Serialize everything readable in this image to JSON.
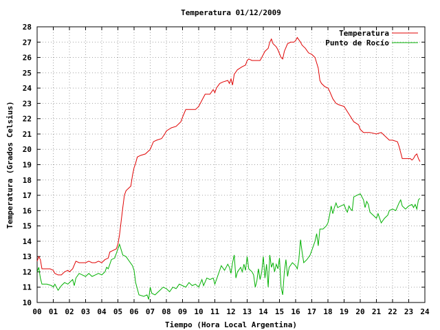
{
  "chart_data": {
    "type": "line",
    "title": "Temperatura 01/12/2009",
    "xlabel": "Tiempo (Hora Local Argentina)",
    "ylabel": "Temperatura (Grados Celsius)",
    "xlim": [
      0,
      24
    ],
    "ylim": [
      10,
      28
    ],
    "x_ticks": [
      "00",
      "01",
      "02",
      "03",
      "04",
      "05",
      "06",
      "07",
      "08",
      "09",
      "10",
      "11",
      "12",
      "13",
      "14",
      "15",
      "16",
      "17",
      "18",
      "19",
      "20",
      "21",
      "22",
      "23",
      "24"
    ],
    "y_ticks": [
      "10",
      "11",
      "12",
      "13",
      "14",
      "15",
      "16",
      "17",
      "18",
      "19",
      "20",
      "21",
      "22",
      "23",
      "24",
      "25",
      "26",
      "27",
      "28"
    ],
    "grid": true,
    "legend_position": "top-right",
    "series": [
      {
        "name": "Temperatura",
        "color": "#e00000",
        "points": [
          [
            0.0,
            12.7
          ],
          [
            0.1,
            13.0
          ],
          [
            0.2,
            12.8
          ],
          [
            0.3,
            12.2
          ],
          [
            0.5,
            12.2
          ],
          [
            0.8,
            12.2
          ],
          [
            1.0,
            12.1
          ],
          [
            1.1,
            11.9
          ],
          [
            1.3,
            11.8
          ],
          [
            1.5,
            11.8
          ],
          [
            1.7,
            12.0
          ],
          [
            1.9,
            12.1
          ],
          [
            2.0,
            12.0
          ],
          [
            2.2,
            12.2
          ],
          [
            2.4,
            12.7
          ],
          [
            2.6,
            12.6
          ],
          [
            2.8,
            12.6
          ],
          [
            3.0,
            12.6
          ],
          [
            3.2,
            12.7
          ],
          [
            3.4,
            12.6
          ],
          [
            3.6,
            12.6
          ],
          [
            3.8,
            12.7
          ],
          [
            4.0,
            12.6
          ],
          [
            4.2,
            12.8
          ],
          [
            4.4,
            12.9
          ],
          [
            4.5,
            13.3
          ],
          [
            4.7,
            13.4
          ],
          [
            4.9,
            13.5
          ],
          [
            5.0,
            13.8
          ],
          [
            5.1,
            14.4
          ],
          [
            5.2,
            15.3
          ],
          [
            5.3,
            16.2
          ],
          [
            5.4,
            17.0
          ],
          [
            5.5,
            17.3
          ],
          [
            5.7,
            17.5
          ],
          [
            5.8,
            17.6
          ],
          [
            5.9,
            18.3
          ],
          [
            6.0,
            18.8
          ],
          [
            6.1,
            19.1
          ],
          [
            6.2,
            19.5
          ],
          [
            6.4,
            19.6
          ],
          [
            6.7,
            19.7
          ],
          [
            6.9,
            19.9
          ],
          [
            7.0,
            20.0
          ],
          [
            7.2,
            20.5
          ],
          [
            7.4,
            20.6
          ],
          [
            7.7,
            20.7
          ],
          [
            7.9,
            21.0
          ],
          [
            8.0,
            21.2
          ],
          [
            8.3,
            21.4
          ],
          [
            8.6,
            21.5
          ],
          [
            8.9,
            21.8
          ],
          [
            9.0,
            22.1
          ],
          [
            9.2,
            22.6
          ],
          [
            9.5,
            22.6
          ],
          [
            9.8,
            22.6
          ],
          [
            10.0,
            22.8
          ],
          [
            10.2,
            23.2
          ],
          [
            10.4,
            23.6
          ],
          [
            10.7,
            23.6
          ],
          [
            10.9,
            23.9
          ],
          [
            11.0,
            23.7
          ],
          [
            11.1,
            24.0
          ],
          [
            11.3,
            24.3
          ],
          [
            11.5,
            24.4
          ],
          [
            11.8,
            24.5
          ],
          [
            11.9,
            24.3
          ],
          [
            12.0,
            24.6
          ],
          [
            12.1,
            24.2
          ],
          [
            12.2,
            24.9
          ],
          [
            12.4,
            25.2
          ],
          [
            12.7,
            25.4
          ],
          [
            12.9,
            25.5
          ],
          [
            13.0,
            25.8
          ],
          [
            13.1,
            25.9
          ],
          [
            13.3,
            25.8
          ],
          [
            13.6,
            25.8
          ],
          [
            13.8,
            25.8
          ],
          [
            13.9,
            26.0
          ],
          [
            14.1,
            26.4
          ],
          [
            14.3,
            26.6
          ],
          [
            14.4,
            27.0
          ],
          [
            14.5,
            27.2
          ],
          [
            14.6,
            26.9
          ],
          [
            14.8,
            26.7
          ],
          [
            14.9,
            26.5
          ],
          [
            15.1,
            26.0
          ],
          [
            15.2,
            25.9
          ],
          [
            15.3,
            26.4
          ],
          [
            15.5,
            26.9
          ],
          [
            15.7,
            27.0
          ],
          [
            15.9,
            27.0
          ],
          [
            16.0,
            27.1
          ],
          [
            16.1,
            27.3
          ],
          [
            16.3,
            27.0
          ],
          [
            16.4,
            26.8
          ],
          [
            16.6,
            26.6
          ],
          [
            16.8,
            26.3
          ],
          [
            17.0,
            26.2
          ],
          [
            17.2,
            26.0
          ],
          [
            17.4,
            25.3
          ],
          [
            17.5,
            24.5
          ],
          [
            17.6,
            24.3
          ],
          [
            17.8,
            24.1
          ],
          [
            18.0,
            24.0
          ],
          [
            18.1,
            23.8
          ],
          [
            18.3,
            23.3
          ],
          [
            18.5,
            23.0
          ],
          [
            18.7,
            22.9
          ],
          [
            19.0,
            22.8
          ],
          [
            19.3,
            22.3
          ],
          [
            19.6,
            21.8
          ],
          [
            19.9,
            21.6
          ],
          [
            20.0,
            21.3
          ],
          [
            20.2,
            21.1
          ],
          [
            20.6,
            21.1
          ],
          [
            21.0,
            21.0
          ],
          [
            21.3,
            21.1
          ],
          [
            21.5,
            20.9
          ],
          [
            21.8,
            20.6
          ],
          [
            22.0,
            20.6
          ],
          [
            22.3,
            20.5
          ],
          [
            22.4,
            20.2
          ],
          [
            22.6,
            19.4
          ],
          [
            22.9,
            19.4
          ],
          [
            23.1,
            19.4
          ],
          [
            23.2,
            19.3
          ],
          [
            23.3,
            19.4
          ],
          [
            23.4,
            19.6
          ],
          [
            23.5,
            19.7
          ],
          [
            23.6,
            19.4
          ],
          [
            23.7,
            19.2
          ]
        ]
      },
      {
        "name": "Punto de Rocío",
        "color": "#00b000",
        "points": [
          [
            0.0,
            12.0
          ],
          [
            0.1,
            12.3
          ],
          [
            0.2,
            11.6
          ],
          [
            0.3,
            11.2
          ],
          [
            0.6,
            11.2
          ],
          [
            0.9,
            11.1
          ],
          [
            1.0,
            11.0
          ],
          [
            1.1,
            11.2
          ],
          [
            1.3,
            10.8
          ],
          [
            1.5,
            11.1
          ],
          [
            1.7,
            11.3
          ],
          [
            1.9,
            11.2
          ],
          [
            2.0,
            11.3
          ],
          [
            2.2,
            11.5
          ],
          [
            2.3,
            11.1
          ],
          [
            2.4,
            11.6
          ],
          [
            2.6,
            11.9
          ],
          [
            2.8,
            11.8
          ],
          [
            3.0,
            11.7
          ],
          [
            3.2,
            11.9
          ],
          [
            3.4,
            11.7
          ],
          [
            3.6,
            11.8
          ],
          [
            3.8,
            11.9
          ],
          [
            4.0,
            11.8
          ],
          [
            4.2,
            12.0
          ],
          [
            4.3,
            12.3
          ],
          [
            4.4,
            12.2
          ],
          [
            4.6,
            12.8
          ],
          [
            4.8,
            12.9
          ],
          [
            5.0,
            13.5
          ],
          [
            5.1,
            13.8
          ],
          [
            5.3,
            13.1
          ],
          [
            5.5,
            13.0
          ],
          [
            5.7,
            12.7
          ],
          [
            5.9,
            12.4
          ],
          [
            6.0,
            12.1
          ],
          [
            6.1,
            11.3
          ],
          [
            6.2,
            10.9
          ],
          [
            6.3,
            10.5
          ],
          [
            6.6,
            10.4
          ],
          [
            6.8,
            10.5
          ],
          [
            6.9,
            10.2
          ],
          [
            7.0,
            11.0
          ],
          [
            7.1,
            10.6
          ],
          [
            7.3,
            10.5
          ],
          [
            7.6,
            10.8
          ],
          [
            7.8,
            11.0
          ],
          [
            8.0,
            10.9
          ],
          [
            8.2,
            10.7
          ],
          [
            8.4,
            11.0
          ],
          [
            8.6,
            10.9
          ],
          [
            8.8,
            11.2
          ],
          [
            9.0,
            11.1
          ],
          [
            9.2,
            11.0
          ],
          [
            9.4,
            11.3
          ],
          [
            9.6,
            11.1
          ],
          [
            9.8,
            11.2
          ],
          [
            10.0,
            11.0
          ],
          [
            10.2,
            11.5
          ],
          [
            10.3,
            11.1
          ],
          [
            10.5,
            11.6
          ],
          [
            10.7,
            11.5
          ],
          [
            10.9,
            11.6
          ],
          [
            11.0,
            11.2
          ],
          [
            11.2,
            11.8
          ],
          [
            11.4,
            12.4
          ],
          [
            11.6,
            12.1
          ],
          [
            11.8,
            12.5
          ],
          [
            11.9,
            12.3
          ],
          [
            12.0,
            11.9
          ],
          [
            12.1,
            12.6
          ],
          [
            12.2,
            13.1
          ],
          [
            12.3,
            11.6
          ],
          [
            12.4,
            12.0
          ],
          [
            12.6,
            12.3
          ],
          [
            12.7,
            12.0
          ],
          [
            12.8,
            12.5
          ],
          [
            12.9,
            12.1
          ],
          [
            13.0,
            13.0
          ],
          [
            13.1,
            12.2
          ],
          [
            13.3,
            12.0
          ],
          [
            13.4,
            11.8
          ],
          [
            13.5,
            11.0
          ],
          [
            13.6,
            11.4
          ],
          [
            13.7,
            12.2
          ],
          [
            13.8,
            11.5
          ],
          [
            13.9,
            12.0
          ],
          [
            14.0,
            13.0
          ],
          [
            14.1,
            11.6
          ],
          [
            14.2,
            12.5
          ],
          [
            14.3,
            11.0
          ],
          [
            14.4,
            13.1
          ],
          [
            14.5,
            12.3
          ],
          [
            14.6,
            12.6
          ],
          [
            14.7,
            12.0
          ],
          [
            14.8,
            12.5
          ],
          [
            14.9,
            12.2
          ],
          [
            15.0,
            12.9
          ],
          [
            15.1,
            11.0
          ],
          [
            15.2,
            10.5
          ],
          [
            15.3,
            12.0
          ],
          [
            15.4,
            12.8
          ],
          [
            15.5,
            11.7
          ],
          [
            15.6,
            12.3
          ],
          [
            15.8,
            12.6
          ],
          [
            16.0,
            12.4
          ],
          [
            16.1,
            12.2
          ],
          [
            16.2,
            12.8
          ],
          [
            16.3,
            14.1
          ],
          [
            16.4,
            13.3
          ],
          [
            16.5,
            12.6
          ],
          [
            16.7,
            12.8
          ],
          [
            16.9,
            13.1
          ],
          [
            17.0,
            13.4
          ],
          [
            17.2,
            14.0
          ],
          [
            17.3,
            14.5
          ],
          [
            17.4,
            13.7
          ],
          [
            17.5,
            14.8
          ],
          [
            17.7,
            14.8
          ],
          [
            17.9,
            15.0
          ],
          [
            18.0,
            15.2
          ],
          [
            18.1,
            15.7
          ],
          [
            18.2,
            16.3
          ],
          [
            18.3,
            15.8
          ],
          [
            18.4,
            16.2
          ],
          [
            18.5,
            16.5
          ],
          [
            18.6,
            16.2
          ],
          [
            18.8,
            16.3
          ],
          [
            19.0,
            16.4
          ],
          [
            19.1,
            16.1
          ],
          [
            19.2,
            15.9
          ],
          [
            19.3,
            16.3
          ],
          [
            19.4,
            16.1
          ],
          [
            19.5,
            16.0
          ],
          [
            19.6,
            16.9
          ],
          [
            19.8,
            17.0
          ],
          [
            20.0,
            17.1
          ],
          [
            20.2,
            16.7
          ],
          [
            20.3,
            16.2
          ],
          [
            20.4,
            16.6
          ],
          [
            20.5,
            16.4
          ],
          [
            20.6,
            15.9
          ],
          [
            20.8,
            15.7
          ],
          [
            21.0,
            15.5
          ],
          [
            21.1,
            15.8
          ],
          [
            21.3,
            15.2
          ],
          [
            21.5,
            15.5
          ],
          [
            21.7,
            15.7
          ],
          [
            21.8,
            16.0
          ],
          [
            22.0,
            16.1
          ],
          [
            22.2,
            16.0
          ],
          [
            22.4,
            16.5
          ],
          [
            22.5,
            16.7
          ],
          [
            22.6,
            16.3
          ],
          [
            22.8,
            16.1
          ],
          [
            23.0,
            16.3
          ],
          [
            23.2,
            16.4
          ],
          [
            23.3,
            16.2
          ],
          [
            23.4,
            16.4
          ],
          [
            23.5,
            16.1
          ],
          [
            23.6,
            16.7
          ],
          [
            23.7,
            16.8
          ]
        ]
      }
    ]
  }
}
